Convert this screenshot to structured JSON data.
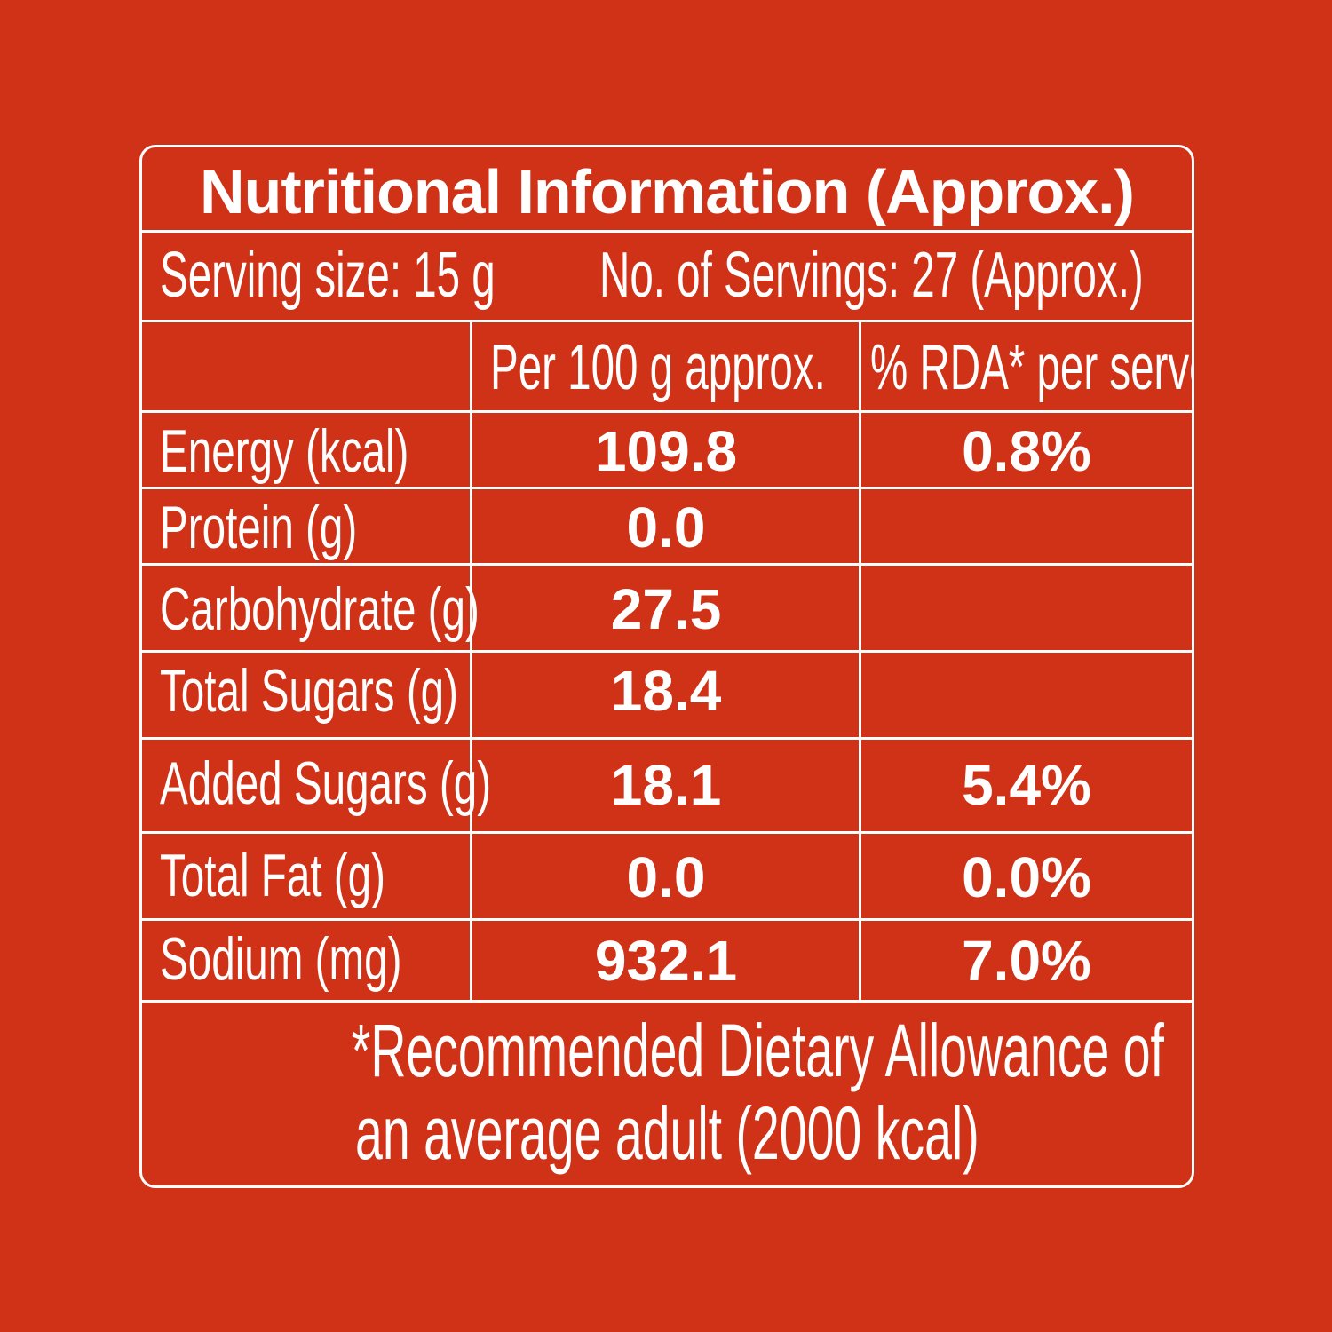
{
  "title": "Nutritional Information (Approx.)",
  "serving": {
    "size": "Serving size: 15 g",
    "count": "No. of Servings: 27 (Approx.)"
  },
  "columns": {
    "per100": "Per 100 g approx.",
    "rda": "% RDA* per serve"
  },
  "rows": [
    {
      "label": "Energy (kcal)",
      "per100": "109.8",
      "rda": "0.8%"
    },
    {
      "label": "Protein (g)",
      "per100": "0.0",
      "rda": ""
    },
    {
      "label": "Carbohydrate (g)",
      "per100": "27.5",
      "rda": ""
    },
    {
      "label": "Total Sugars (g)",
      "per100": "18.4",
      "rda": ""
    },
    {
      "label": "Added Sugars (g)",
      "per100": "18.1",
      "rda": "5.4%"
    },
    {
      "label": "Total Fat (g)",
      "per100": "0.0",
      "rda": "0.0%"
    },
    {
      "label": "Sodium (mg)",
      "per100": "932.1",
      "rda": "7.0%"
    }
  ],
  "footnote": {
    "line1": "*Recommended Dietary Allowance of",
    "line2": "an average adult (2000 kcal)"
  },
  "colors": {
    "background": "#cf3217",
    "text": "#ffffff"
  }
}
